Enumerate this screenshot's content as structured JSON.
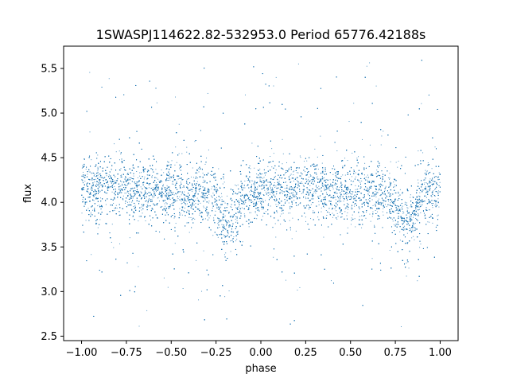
{
  "chart_data": {
    "type": "scatter",
    "title": "1SWASPJ114622.82-532953.0 Period 65776.42188s",
    "xlabel": "phase",
    "ylabel": "flux",
    "xlim": [
      -1.1,
      1.1
    ],
    "ylim": [
      2.45,
      5.75
    ],
    "xticks": [
      "-1.00",
      "-0.75",
      "-0.50",
      "-0.25",
      "0.00",
      "0.25",
      "0.50",
      "0.75",
      "1.00"
    ],
    "yticks": [
      "2.5",
      "3.0",
      "3.5",
      "4.0",
      "4.5",
      "5.0",
      "5.5"
    ],
    "grid": false,
    "legend": "none",
    "point_color": "#1f77b4",
    "light_curve": {
      "phase_range": [
        -1.0,
        1.0
      ],
      "baseline_flux": 4.12,
      "dip_phases": [
        -0.18,
        0.82
      ],
      "dip_min_flux": 3.78,
      "scatter_sigma": 0.22,
      "outlier_range": [
        2.6,
        5.6
      ],
      "n_points": 14000
    }
  }
}
